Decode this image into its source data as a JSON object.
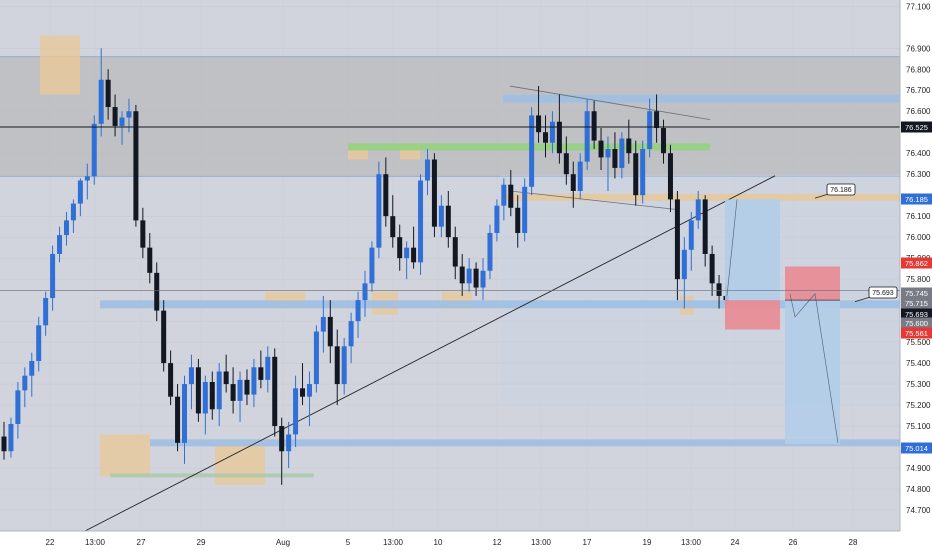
{
  "chart_data": {
    "type": "candlestick",
    "ylim": [
      74.6,
      77.13
    ],
    "y_ticks": [
      "77.100",
      "76.900",
      "76.800",
      "76.700",
      "76.600",
      "76.400",
      "76.300",
      "76.100",
      "76.000",
      "75.900",
      "75.800",
      "75.600",
      "75.500",
      "75.400",
      "75.300",
      "75.200",
      "75.100",
      "74.900",
      "74.800",
      "74.700"
    ],
    "x_ticks": [
      "22",
      "13:00",
      "27",
      "29",
      "Aug",
      "5",
      "13:00",
      "10",
      "12",
      "13:00",
      "17",
      "19",
      "13:00",
      "24",
      "26",
      "28"
    ],
    "price_tags": [
      {
        "label": "76.525",
        "value": 76.525,
        "color": "#131722"
      },
      {
        "label": "76.185",
        "value": 76.185,
        "color": "#2f6fd6"
      },
      {
        "label": "75.862",
        "value": 75.862,
        "color": "#e53935"
      },
      {
        "label": "75.745",
        "value": 75.745,
        "color": "#787b86"
      },
      {
        "label": "75.715",
        "value": 75.715,
        "color": "#787b86"
      },
      {
        "label": "75.693",
        "value": 75.693,
        "color": "#131722"
      },
      {
        "label": "75.600",
        "value": 75.6,
        "color": "#787b86"
      },
      {
        "label": "75.561",
        "value": 75.561,
        "color": "#e53935"
      },
      {
        "label": "75.014",
        "value": 75.014,
        "color": "#2f6fd6"
      }
    ],
    "callouts": [
      {
        "label": "76.186",
        "value": 76.186
      },
      {
        "label": "75.693",
        "value": 75.693
      }
    ],
    "zones": {
      "gray_band": [
        76.29,
        76.86
      ],
      "black_line": 76.525,
      "blue_lines": [
        76.66,
        75.68,
        75.02
      ],
      "green_line": 76.43,
      "orange_line": 76.19,
      "thin_line": 75.745
    },
    "trade_setups": [
      {
        "entry": 75.7,
        "stop": 75.56,
        "target": 76.18
      },
      {
        "entry": 75.7,
        "stop": 75.86,
        "target": 75.014
      }
    ],
    "colors": {
      "up": "#2f6fd6",
      "down": "#131722",
      "gray_band": "#bdbdbf",
      "blue_zone": "#9fbfe3",
      "green_zone": "#90d27c",
      "orange_zone": "#e8c89a",
      "red_zone": "#e88d96",
      "pos_target": "#b3cde9"
    },
    "candles": [
      [
        75.05,
        75.12,
        74.94,
        74.98
      ],
      [
        74.98,
        75.14,
        74.95,
        75.11
      ],
      [
        75.11,
        75.31,
        75.04,
        75.27
      ],
      [
        75.27,
        75.38,
        75.19,
        75.34
      ],
      [
        75.34,
        75.45,
        75.24,
        75.41
      ],
      [
        75.41,
        75.62,
        75.36,
        75.58
      ],
      [
        75.58,
        75.74,
        75.53,
        75.71
      ],
      [
        75.71,
        75.96,
        75.65,
        75.92
      ],
      [
        75.92,
        76.05,
        75.88,
        76.01
      ],
      [
        76.01,
        76.12,
        75.96,
        76.08
      ],
      [
        76.08,
        76.18,
        76.02,
        76.16
      ],
      [
        76.16,
        76.28,
        76.1,
        76.27
      ],
      [
        76.27,
        76.35,
        76.18,
        76.29
      ],
      [
        76.29,
        76.58,
        76.25,
        76.54
      ],
      [
        76.54,
        76.9,
        76.48,
        76.75
      ],
      [
        76.75,
        76.8,
        76.56,
        76.62
      ],
      [
        76.62,
        76.68,
        76.48,
        76.53
      ],
      [
        76.53,
        76.6,
        76.44,
        76.57
      ],
      [
        76.57,
        76.66,
        76.5,
        76.6
      ],
      [
        76.6,
        76.63,
        76.05,
        76.08
      ],
      [
        76.08,
        76.14,
        75.9,
        75.95
      ],
      [
        75.95,
        76.02,
        75.78,
        75.83
      ],
      [
        75.83,
        75.88,
        75.6,
        75.65
      ],
      [
        75.65,
        75.7,
        75.36,
        75.4
      ],
      [
        75.4,
        75.46,
        75.2,
        75.24
      ],
      [
        75.24,
        75.3,
        74.98,
        75.02
      ],
      [
        75.02,
        75.34,
        74.92,
        75.3
      ],
      [
        75.3,
        75.44,
        75.18,
        75.38
      ],
      [
        75.38,
        75.42,
        75.12,
        75.16
      ],
      [
        75.16,
        75.34,
        75.06,
        75.31
      ],
      [
        75.31,
        75.36,
        75.13,
        75.18
      ],
      [
        75.18,
        75.4,
        75.1,
        75.36
      ],
      [
        75.36,
        75.44,
        75.26,
        75.3
      ],
      [
        75.3,
        75.38,
        75.16,
        75.22
      ],
      [
        75.22,
        75.36,
        75.12,
        75.32
      ],
      [
        75.32,
        75.37,
        75.2,
        75.25
      ],
      [
        75.25,
        75.42,
        75.19,
        75.38
      ],
      [
        75.38,
        75.46,
        75.28,
        75.32
      ],
      [
        75.32,
        75.48,
        75.26,
        75.43
      ],
      [
        75.43,
        75.47,
        75.05,
        75.1
      ],
      [
        75.1,
        75.14,
        74.82,
        74.98
      ],
      [
        74.98,
        75.12,
        74.9,
        75.06
      ],
      [
        75.06,
        75.34,
        75.0,
        75.28
      ],
      [
        75.28,
        75.4,
        75.2,
        75.24
      ],
      [
        75.24,
        75.36,
        75.1,
        75.3
      ],
      [
        75.3,
        75.58,
        75.26,
        75.55
      ],
      [
        75.55,
        75.72,
        75.45,
        75.62
      ],
      [
        75.62,
        75.7,
        75.4,
        75.48
      ],
      [
        75.48,
        75.56,
        75.2,
        75.3
      ],
      [
        75.3,
        75.52,
        75.25,
        75.48
      ],
      [
        75.48,
        75.64,
        75.4,
        75.6
      ],
      [
        75.6,
        75.74,
        75.52,
        75.7
      ],
      [
        75.7,
        75.84,
        75.62,
        75.78
      ],
      [
        75.78,
        75.98,
        75.74,
        75.95
      ],
      [
        75.95,
        76.36,
        75.9,
        76.3
      ],
      [
        76.3,
        76.38,
        76.05,
        76.1
      ],
      [
        76.1,
        76.2,
        75.95,
        76.0
      ],
      [
        76.0,
        76.06,
        75.84,
        75.9
      ],
      [
        75.9,
        75.98,
        75.8,
        75.95
      ],
      [
        75.95,
        76.05,
        75.85,
        75.88
      ],
      [
        75.88,
        76.3,
        75.82,
        76.27
      ],
      [
        76.27,
        76.42,
        76.2,
        76.37
      ],
      [
        76.37,
        76.4,
        76.0,
        76.05
      ],
      [
        76.05,
        76.2,
        76.0,
        76.15
      ],
      [
        76.15,
        76.22,
        75.95,
        76.0
      ],
      [
        76.0,
        76.05,
        75.8,
        75.86
      ],
      [
        75.86,
        75.92,
        75.72,
        75.78
      ],
      [
        75.78,
        75.9,
        75.74,
        75.85
      ],
      [
        75.85,
        75.88,
        75.72,
        75.76
      ],
      [
        75.76,
        75.9,
        75.7,
        75.84
      ],
      [
        75.84,
        76.06,
        75.8,
        76.02
      ],
      [
        76.02,
        76.18,
        75.98,
        76.15
      ],
      [
        76.15,
        76.28,
        76.08,
        76.25
      ],
      [
        76.25,
        76.32,
        76.1,
        76.14
      ],
      [
        76.14,
        76.2,
        75.95,
        76.02
      ],
      [
        76.02,
        76.28,
        75.98,
        76.24
      ],
      [
        76.24,
        76.62,
        76.2,
        76.58
      ],
      [
        76.58,
        76.72,
        76.45,
        76.5
      ],
      [
        76.5,
        76.58,
        76.38,
        76.45
      ],
      [
        76.45,
        76.6,
        76.4,
        76.55
      ],
      [
        76.55,
        76.68,
        76.35,
        76.4
      ],
      [
        76.4,
        76.48,
        76.25,
        76.3
      ],
      [
        76.3,
        76.36,
        76.14,
        76.22
      ],
      [
        76.22,
        76.4,
        76.18,
        76.36
      ],
      [
        76.36,
        76.66,
        76.32,
        76.6
      ],
      [
        76.6,
        76.65,
        76.42,
        76.46
      ],
      [
        76.46,
        76.52,
        76.32,
        76.38
      ],
      [
        76.38,
        76.48,
        76.22,
        76.42
      ],
      [
        76.42,
        76.5,
        76.28,
        76.33
      ],
      [
        76.33,
        76.5,
        76.28,
        76.47
      ],
      [
        76.47,
        76.56,
        76.35,
        76.4
      ],
      [
        76.4,
        76.46,
        76.15,
        76.2
      ],
      [
        76.2,
        76.46,
        76.16,
        76.42
      ],
      [
        76.42,
        76.66,
        76.38,
        76.6
      ],
      [
        76.6,
        76.68,
        76.45,
        76.52
      ],
      [
        76.52,
        76.56,
        76.35,
        76.4
      ],
      [
        76.4,
        76.44,
        76.12,
        76.18
      ],
      [
        76.18,
        76.22,
        75.7,
        75.8
      ],
      [
        75.8,
        76.0,
        75.66,
        75.94
      ],
      [
        75.94,
        76.12,
        75.84,
        76.08
      ],
      [
        76.08,
        76.22,
        76.04,
        76.18
      ],
      [
        76.18,
        76.2,
        75.86,
        75.92
      ],
      [
        75.92,
        75.96,
        75.72,
        75.78
      ],
      [
        75.78,
        75.82,
        75.66,
        75.72
      ],
      [
        75.72,
        75.77,
        75.66,
        75.7
      ]
    ]
  }
}
